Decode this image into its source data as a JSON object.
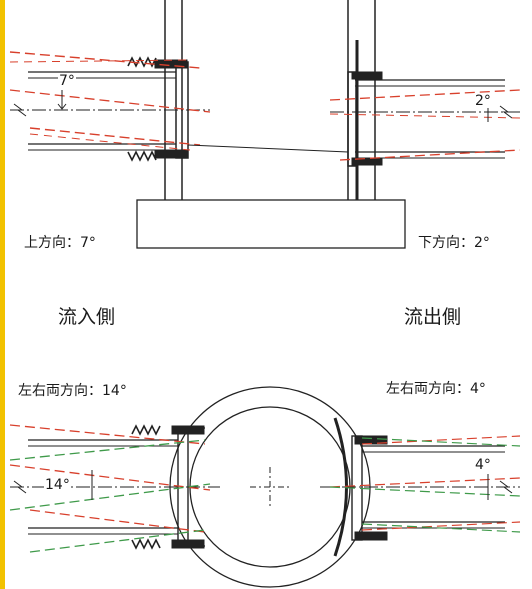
{
  "colors": {
    "accent_bar": "#f2c200",
    "line": "#222222",
    "red_dash": "#d8402c",
    "green_dash": "#3f9a4a",
    "base_fill": "#ffffff"
  },
  "top": {
    "inflow_angle_label": "上方向：7°",
    "outflow_angle_label": "下方向：2°",
    "inflow_number": "7°",
    "outflow_number": "2°"
  },
  "sides": {
    "inflow_title": "流入側",
    "outflow_title": "流出側"
  },
  "bottom": {
    "inflow_angle_label": "左右両方向：14°",
    "outflow_angle_label": "左右両方向：4°",
    "inflow_number": "14°",
    "outflow_number": "4°"
  }
}
